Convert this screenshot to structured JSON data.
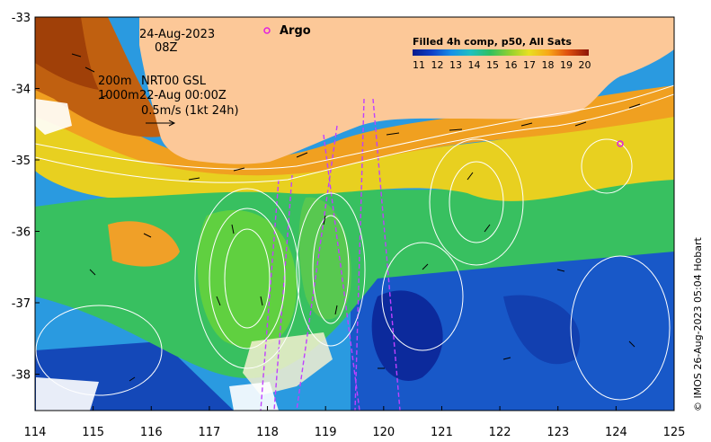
{
  "map": {
    "date": "24-Aug-2023",
    "hour": "08Z",
    "argo_label": "Argo",
    "depth_shallow": "200m",
    "depth_deep": "1000m",
    "altimetry_label": "NRT00 GSL",
    "altimetry_date": "22-Aug 00:00Z",
    "scale_label": "0.5m/s (1kt 24h)",
    "colorbar_title": "Filled 4h comp, p50, All Sats",
    "colorbar_ticks": [
      "11",
      "12",
      "13",
      "14",
      "15",
      "16",
      "17",
      "18",
      "19",
      "20"
    ],
    "credit": "© IMOS 26-Aug-2023 05:04 Hobart",
    "lon_ticks": [
      "114",
      "115",
      "116",
      "117",
      "118",
      "119",
      "120",
      "121",
      "122",
      "123",
      "124",
      "125"
    ],
    "lat_ticks": [
      "-33",
      "-34",
      "-35",
      "-36",
      "-37",
      "-38"
    ],
    "colors": {
      "land": "#fcc898",
      "argo": "#e020e0",
      "track": "#c040ff",
      "contour": "#ffffff"
    }
  }
}
